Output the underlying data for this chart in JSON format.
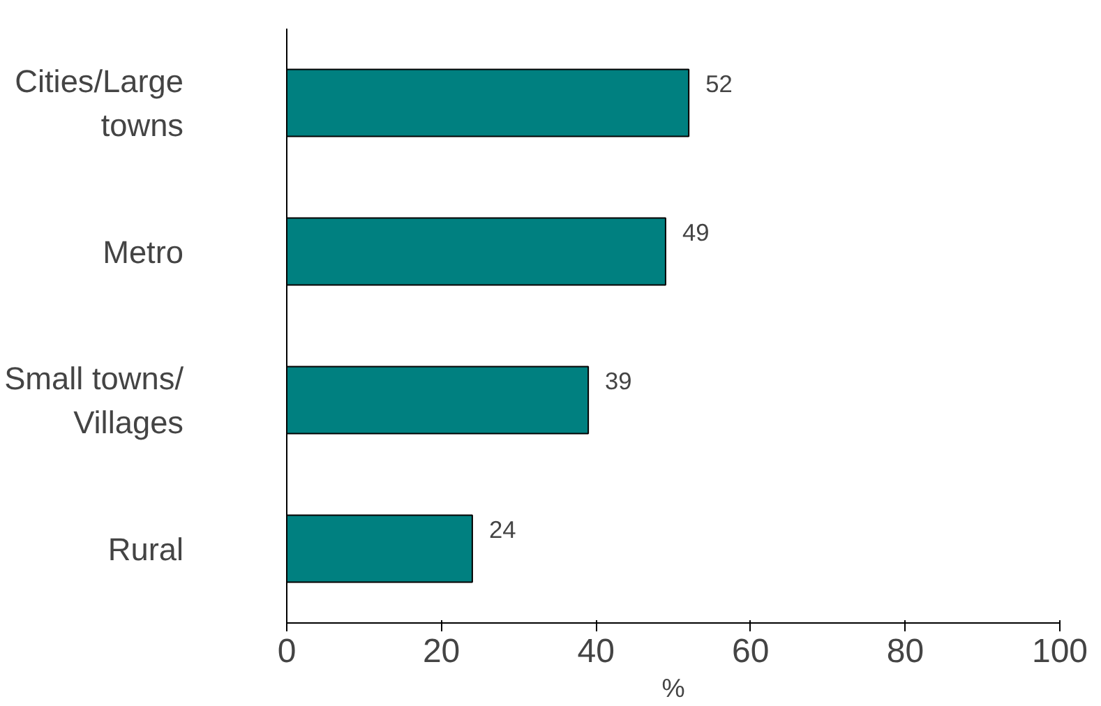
{
  "chart_data": {
    "type": "bar",
    "orientation": "horizontal",
    "xlabel": "%",
    "categories": [
      "Cities/Large towns",
      "Metro",
      "Small towns/ Villages",
      "Rural"
    ],
    "values": [
      52,
      49,
      39,
      24
    ],
    "color": "#008080",
    "data_labels": true,
    "xlim": [
      0,
      100
    ],
    "xticks": [
      0,
      20,
      40,
      60,
      80,
      100
    ],
    "grid": false
  }
}
